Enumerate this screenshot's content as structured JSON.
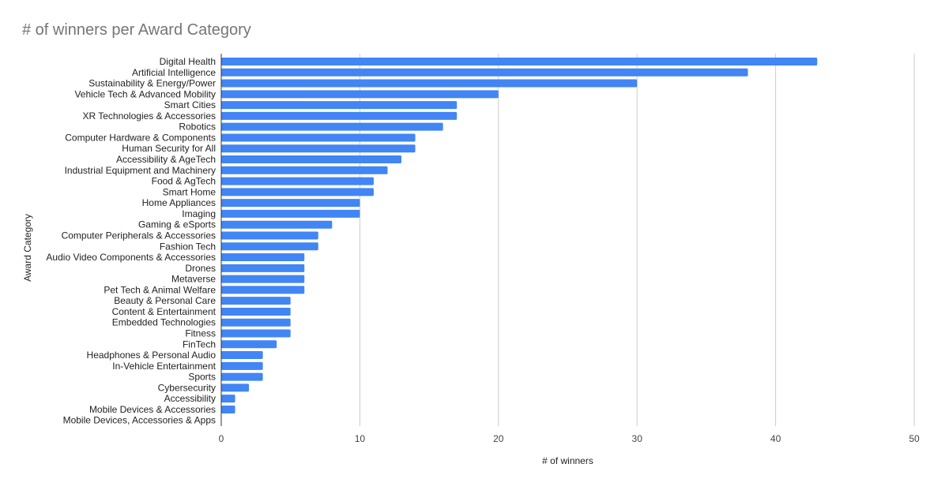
{
  "chart_data": {
    "type": "bar",
    "orientation": "horizontal",
    "title": "# of winners per Award Category",
    "xlabel": "# of winners",
    "ylabel": "Award Category",
    "xlim": [
      0,
      50
    ],
    "xticks": [
      0,
      10,
      20,
      30,
      40,
      50
    ],
    "grid": true,
    "legend": "none",
    "bar_color": "#4285f4",
    "categories": [
      "Digital Health",
      "Artificial Intelligence",
      "Sustainability & Energy/Power",
      "Vehicle Tech & Advanced Mobility",
      "Smart Cities",
      "XR Technologies & Accessories",
      "Robotics",
      "Computer Hardware & Components",
      "Human Security for All",
      "Accessibility & AgeTech",
      "Industrial Equipment and Machinery",
      "Food & AgTech",
      "Smart Home",
      "Home Appliances",
      "Imaging",
      "Gaming & eSports",
      "Computer Peripherals & Accessories",
      "Fashion Tech",
      "Audio Video Components & Accessories",
      "Drones",
      "Metaverse",
      "Pet Tech & Animal Welfare",
      "Beauty & Personal Care",
      "Content & Entertainment",
      "Embedded Technologies",
      "Fitness",
      "FinTech",
      "Headphones & Personal Audio",
      "In-Vehicle Entertainment",
      "Sports",
      "Cybersecurity",
      "Accessibility",
      "Mobile Devices & Accessories",
      "Mobile Devices, Accessories & Apps"
    ],
    "values": [
      43,
      38,
      30,
      20,
      17,
      17,
      16,
      14,
      14,
      13,
      12,
      11,
      11,
      10,
      10,
      8,
      7,
      7,
      6,
      6,
      6,
      6,
      5,
      5,
      5,
      5,
      4,
      3,
      3,
      3,
      2,
      1,
      1,
      0
    ]
  }
}
